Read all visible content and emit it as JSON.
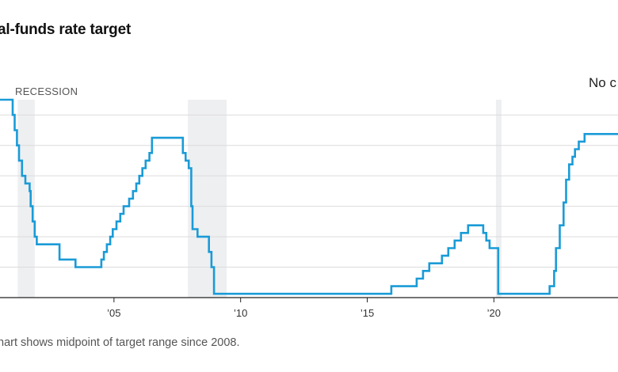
{
  "title": "al-funds rate target",
  "footnote": "hart shows midpoint of target range since 2008.",
  "annotation": "No c",
  "colors": {
    "line": "#1a9bd7",
    "recession": "#eeeff1",
    "grid": "#dcdcdc",
    "axis": "#222222"
  },
  "chart_data": {
    "type": "line",
    "xlabel": "",
    "ylabel": "",
    "xlim": [
      2000.5,
      2024.9
    ],
    "ylim": [
      0,
      6.5
    ],
    "grid": true,
    "x_ticks": [
      {
        "x": 2005,
        "label": "’05"
      },
      {
        "x": 2010,
        "label": "’10"
      },
      {
        "x": 2015,
        "label": "’15"
      },
      {
        "x": 2020,
        "label": "’20"
      }
    ],
    "recessions": {
      "label": "RECESSION",
      "periods": [
        [
          2001.2,
          2001.87
        ],
        [
          2007.92,
          2009.45
        ],
        [
          2020.08,
          2020.3
        ]
      ]
    },
    "series": [
      {
        "step": true,
        "points": [
          [
            2000.5,
            6.5
          ],
          [
            2001.0,
            6.0
          ],
          [
            2001.08,
            5.5
          ],
          [
            2001.17,
            5.0
          ],
          [
            2001.25,
            4.5
          ],
          [
            2001.37,
            4.0
          ],
          [
            2001.5,
            3.75
          ],
          [
            2001.67,
            3.5
          ],
          [
            2001.71,
            3.0
          ],
          [
            2001.79,
            2.5
          ],
          [
            2001.87,
            2.0
          ],
          [
            2001.95,
            1.75
          ],
          [
            2002.85,
            1.25
          ],
          [
            2003.48,
            1.0
          ],
          [
            2004.5,
            1.25
          ],
          [
            2004.6,
            1.5
          ],
          [
            2004.72,
            1.75
          ],
          [
            2004.85,
            2.0
          ],
          [
            2004.95,
            2.25
          ],
          [
            2005.1,
            2.5
          ],
          [
            2005.25,
            2.75
          ],
          [
            2005.38,
            3.0
          ],
          [
            2005.6,
            3.25
          ],
          [
            2005.75,
            3.5
          ],
          [
            2005.88,
            3.75
          ],
          [
            2006.0,
            4.0
          ],
          [
            2006.12,
            4.25
          ],
          [
            2006.25,
            4.5
          ],
          [
            2006.4,
            4.75
          ],
          [
            2006.5,
            5.25
          ],
          [
            2007.72,
            4.75
          ],
          [
            2007.83,
            4.5
          ],
          [
            2007.95,
            4.25
          ],
          [
            2008.05,
            3.0
          ],
          [
            2008.1,
            2.25
          ],
          [
            2008.3,
            2.0
          ],
          [
            2008.45,
            2.0
          ],
          [
            2008.75,
            1.5
          ],
          [
            2008.85,
            1.0
          ],
          [
            2008.95,
            0.125
          ],
          [
            2015.95,
            0.375
          ],
          [
            2016.95,
            0.625
          ],
          [
            2017.2,
            0.875
          ],
          [
            2017.45,
            1.125
          ],
          [
            2017.95,
            1.375
          ],
          [
            2018.2,
            1.625
          ],
          [
            2018.45,
            1.875
          ],
          [
            2018.7,
            2.125
          ],
          [
            2018.98,
            2.375
          ],
          [
            2019.58,
            2.125
          ],
          [
            2019.7,
            1.875
          ],
          [
            2019.83,
            1.625
          ],
          [
            2020.17,
            0.125
          ],
          [
            2022.2,
            0.375
          ],
          [
            2022.38,
            0.875
          ],
          [
            2022.45,
            1.625
          ],
          [
            2022.6,
            2.375
          ],
          [
            2022.75,
            3.125
          ],
          [
            2022.85,
            3.875
          ],
          [
            2022.97,
            4.375
          ],
          [
            2023.1,
            4.625
          ],
          [
            2023.2,
            4.875
          ],
          [
            2023.35,
            5.125
          ],
          [
            2023.58,
            5.375
          ],
          [
            2024.9,
            5.375
          ]
        ]
      }
    ]
  }
}
